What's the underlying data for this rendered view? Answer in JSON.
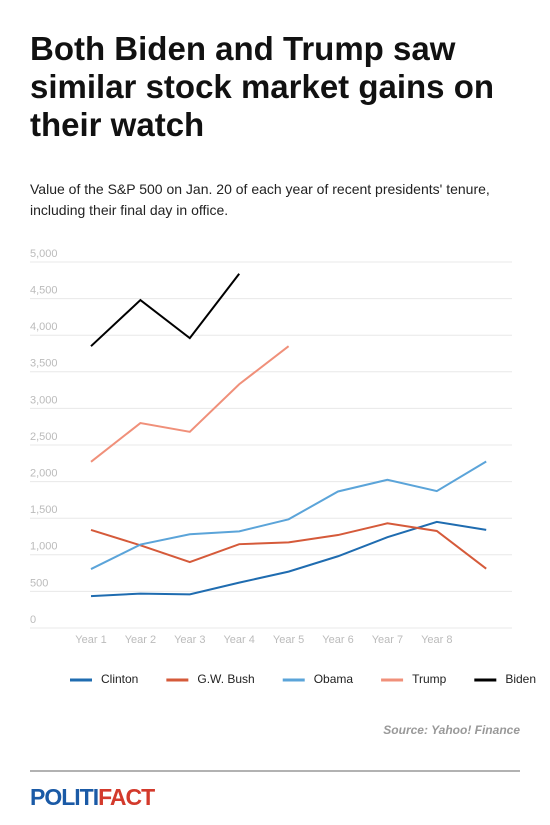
{
  "chart_data": {
    "type": "line",
    "title": "Both Biden and Trump saw similar stock market gains on their watch",
    "subtitle": "Value of the S&P 500 on Jan. 20 of each year of recent presidents' tenure, including their final day in office.",
    "categories": [
      "Year 1",
      "Year 2",
      "Year 3",
      "Year 4",
      "Year 5",
      "Year 6",
      "Year 7",
      "Year 8",
      null
    ],
    "series": [
      {
        "name": "Clinton",
        "color": "#1f6cb0",
        "values": [
          435,
          470,
          460,
          620,
          770,
          980,
          1240,
          1450,
          1340
        ]
      },
      {
        "name": "G.W. Bush",
        "color": "#d55a3a",
        "values": [
          1340,
          1130,
          900,
          1145,
          1170,
          1270,
          1430,
          1325,
          810
        ]
      },
      {
        "name": "Obama",
        "color": "#5ba4d9",
        "values": [
          805,
          1140,
          1280,
          1320,
          1485,
          1865,
          2025,
          1870,
          2275
        ]
      },
      {
        "name": "Trump",
        "color": "#f0907a",
        "values": [
          2270,
          2800,
          2680,
          3330,
          3850,
          null,
          null,
          null,
          null
        ]
      },
      {
        "name": "Biden",
        "color": "#000000",
        "values": [
          3850,
          4480,
          3960,
          4840,
          null,
          null,
          null,
          null,
          null
        ]
      }
    ],
    "ylim": [
      0,
      5000
    ],
    "yticks": [
      0,
      500,
      {
        "value": 1000,
        "label": "1,000"
      },
      {
        "value": 1500,
        "label": "1,500"
      },
      {
        "value": 2000,
        "label": "2,000"
      },
      {
        "value": 2500,
        "label": "2,500"
      },
      {
        "value": 3000,
        "label": "3,000"
      },
      {
        "value": 3500,
        "label": "3,500"
      },
      {
        "value": 4000,
        "label": "4,000"
      },
      {
        "value": 4500,
        "label": "4,500"
      },
      {
        "value": 5000,
        "label": "5,000"
      }
    ],
    "grid": true,
    "legend": "bottom",
    "source": "Source: Yahoo! Finance"
  },
  "footer": {
    "logo_part1": "POLITI",
    "logo_part2": "FACT"
  }
}
